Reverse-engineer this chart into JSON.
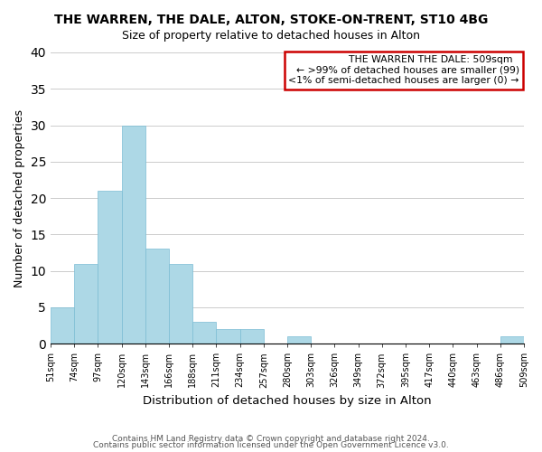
{
  "title": "THE WARREN, THE DALE, ALTON, STOKE-ON-TRENT, ST10 4BG",
  "subtitle": "Size of property relative to detached houses in Alton",
  "xlabel": "Distribution of detached houses by size in Alton",
  "ylabel": "Number of detached properties",
  "bar_color": "#add8e6",
  "bar_edge_color": "#7bbcd4",
  "bins": [
    "51sqm",
    "74sqm",
    "97sqm",
    "120sqm",
    "143sqm",
    "166sqm",
    "188sqm",
    "211sqm",
    "234sqm",
    "257sqm",
    "280sqm",
    "303sqm",
    "326sqm",
    "349sqm",
    "372sqm",
    "395sqm",
    "417sqm",
    "440sqm",
    "463sqm",
    "486sqm",
    "509sqm"
  ],
  "values": [
    5,
    11,
    21,
    30,
    13,
    11,
    3,
    2,
    2,
    0,
    1,
    0,
    0,
    0,
    0,
    0,
    0,
    0,
    0,
    1
  ],
  "ylim": [
    0,
    40
  ],
  "yticks": [
    0,
    5,
    10,
    15,
    20,
    25,
    30,
    35,
    40
  ],
  "legend_box_color": "#ffffff",
  "legend_box_edge_color": "#cc0000",
  "legend_title": "THE WARREN THE DALE: 509sqm",
  "legend_line1": "← >99% of detached houses are smaller (99)",
  "legend_line2": "<1% of semi-detached houses are larger (0) →",
  "footer1": "Contains HM Land Registry data © Crown copyright and database right 2024.",
  "footer2": "Contains public sector information licensed under the Open Government Licence v3.0.",
  "background_color": "#ffffff",
  "grid_color": "#cccccc"
}
